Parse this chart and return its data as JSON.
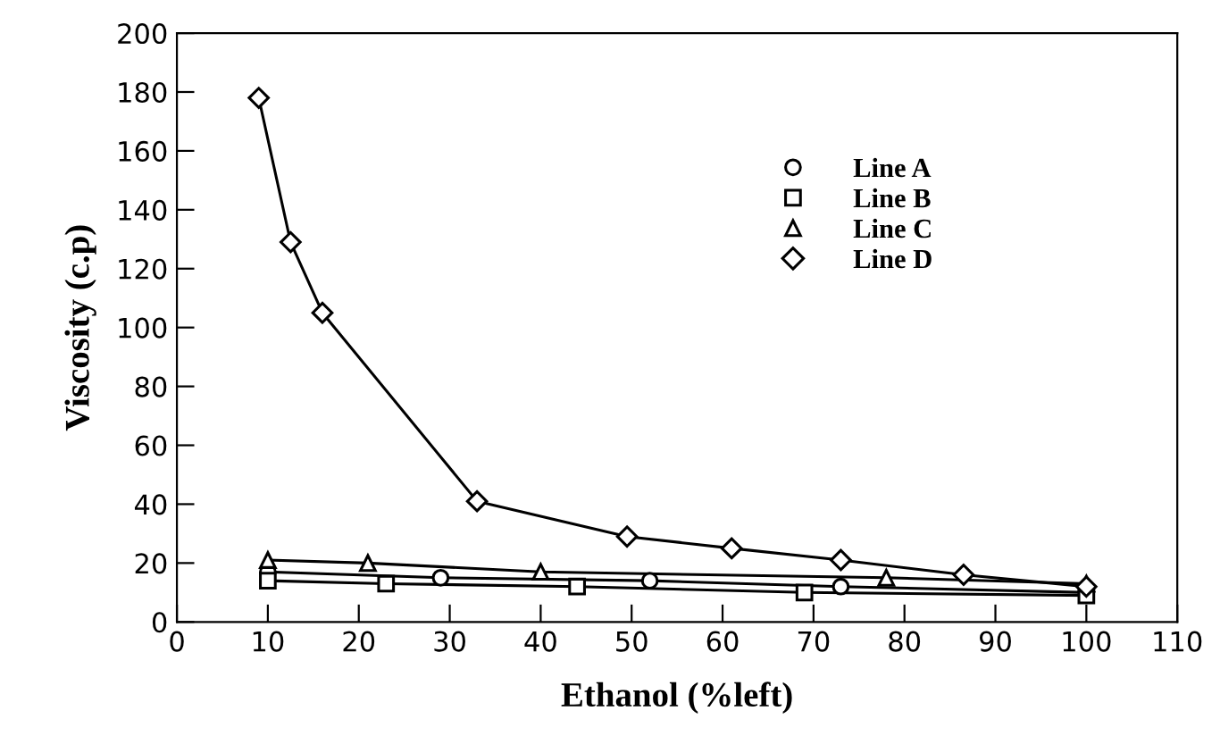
{
  "chart_data": {
    "type": "line",
    "xlabel": "Ethanol (%left)",
    "ylabel": "Viscosity (c.p)",
    "xlim": [
      0,
      110
    ],
    "xticks": [
      0,
      10,
      20,
      30,
      40,
      50,
      60,
      70,
      80,
      90,
      100,
      110
    ],
    "ylim": [
      0,
      200
    ],
    "yticks": [
      0,
      20,
      40,
      60,
      80,
      100,
      120,
      140,
      160,
      180,
      200
    ],
    "grid": false,
    "legend": "top right",
    "line_style": "solid",
    "series": [
      {
        "name": "Line A",
        "color": "#000000",
        "marker": "circle",
        "x": [
          10,
          29,
          52,
          73,
          100
        ],
        "values": [
          17,
          15,
          14,
          12,
          10
        ]
      },
      {
        "name": "Line B",
        "color": "#000000",
        "marker": "square",
        "x": [
          10,
          23,
          44,
          69,
          100
        ],
        "values": [
          14,
          13,
          12,
          10,
          9
        ]
      },
      {
        "name": "Line C",
        "color": "#000000",
        "marker": "triangle",
        "x": [
          10,
          21,
          40,
          78,
          100
        ],
        "values": [
          21,
          20,
          17,
          15,
          13
        ]
      },
      {
        "name": "Line D",
        "color": "#000000",
        "marker": "diamond",
        "x": [
          9,
          12.5,
          16,
          33,
          49.5,
          61,
          73,
          86.5,
          100
        ],
        "values": [
          178,
          129,
          105,
          41,
          29,
          25,
          21,
          16,
          12
        ]
      }
    ]
  }
}
